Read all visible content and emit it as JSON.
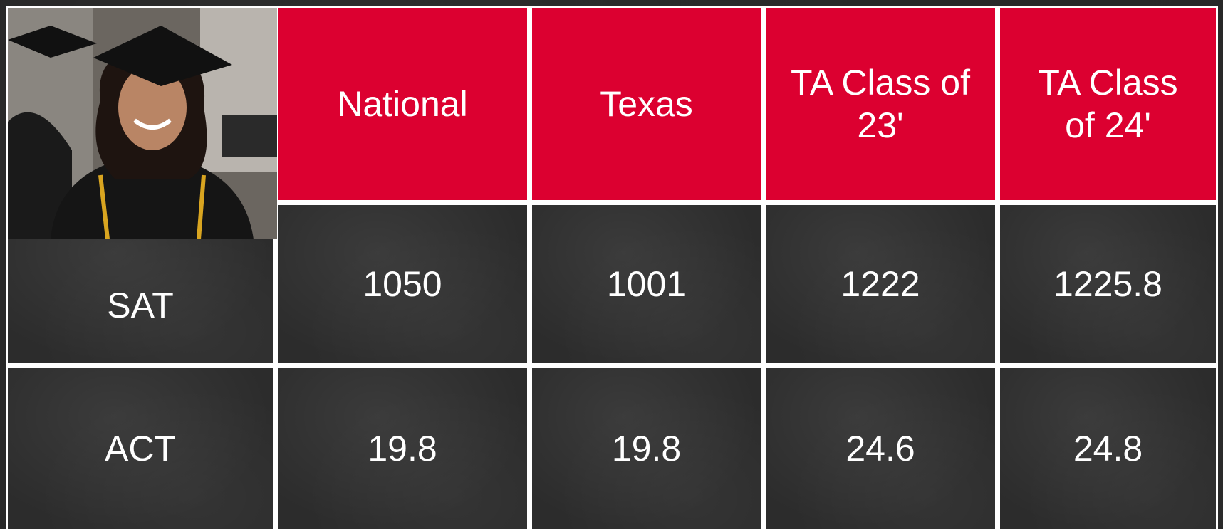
{
  "table": {
    "header": [
      "National",
      "Texas",
      "TA Class of 23'",
      "TA Class of 24'"
    ],
    "rows": [
      [
        "SAT",
        1050,
        1001,
        1222,
        1225.8
      ],
      [
        "ACT",
        19.8,
        19.8,
        24.6,
        24.8
      ]
    ]
  }
}
